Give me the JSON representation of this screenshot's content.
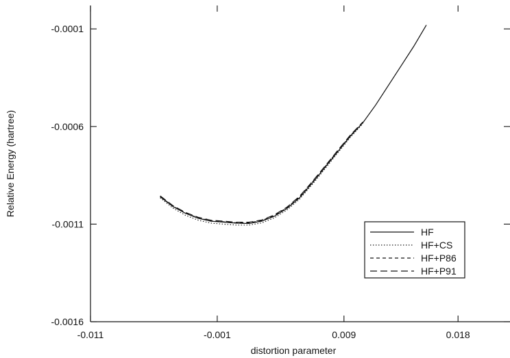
{
  "chart_data": {
    "type": "line",
    "title": "",
    "xlabel": "distortion parameter",
    "ylabel": "Relative Energy (hartree)",
    "xlim": [
      -0.011,
      0.0221
    ],
    "ylim": [
      -0.0016,
      2e-05
    ],
    "x_ticks": [
      -0.011,
      -0.001,
      0.009,
      0.018
    ],
    "x_tick_labels": [
      "-0.011",
      "-0.001",
      "0.009",
      "0.018"
    ],
    "y_ticks": [
      -0.0016,
      -0.0011,
      -0.0006,
      -0.0001
    ],
    "y_tick_labels": [
      "-0.0016",
      "-0.0011",
      "-0.0006",
      "-0.0001"
    ],
    "grid": false,
    "legend_position": "lower-right",
    "series": [
      {
        "name": "HF",
        "style": "solid",
        "x": [
          -0.0055,
          -0.0045,
          -0.0035,
          -0.0025,
          -0.0015,
          -0.0005,
          0.0005,
          0.0015,
          0.0025,
          0.0035,
          0.0045,
          0.0055,
          0.0065,
          0.0075,
          0.0085,
          0.0095,
          0.0105,
          0.0115,
          0.0125,
          0.0135,
          0.0145,
          0.0155
        ],
        "values": [
          -0.00096,
          -0.00101,
          -0.001045,
          -0.00107,
          -0.001085,
          -0.00109,
          -0.001095,
          -0.001097,
          -0.001085,
          -0.00106,
          -0.00102,
          -0.000965,
          -0.00089,
          -0.00081,
          -0.00073,
          -0.00065,
          -0.00058,
          -0.00049,
          -0.00039,
          -0.00029,
          -0.00019,
          -8e-05
        ]
      },
      {
        "name": "HF+CS",
        "style": "dotted",
        "x": [
          -0.0055,
          -0.0045,
          -0.0035,
          -0.0025,
          -0.0015,
          -0.0005,
          0.0005,
          0.0015,
          0.0025,
          0.0035,
          0.0045,
          0.0055,
          0.0065,
          0.0075,
          0.0085,
          0.0095,
          0.0105
        ],
        "values": [
          -0.000965,
          -0.001018,
          -0.001055,
          -0.00108,
          -0.001095,
          -0.0011,
          -0.001105,
          -0.001105,
          -0.001094,
          -0.001068,
          -0.001028,
          -0.000972,
          -0.000897,
          -0.000817,
          -0.000736,
          -0.000656,
          -0.000585
        ]
      },
      {
        "name": "HF+P86",
        "style": "dashed",
        "x": [
          -0.0055,
          -0.0045,
          -0.0035,
          -0.0025,
          -0.0015,
          -0.0005,
          0.0005,
          0.0015,
          0.0025,
          0.0035,
          0.0045,
          0.0055,
          0.0065,
          0.0075,
          0.0085,
          0.0095,
          0.0105
        ],
        "values": [
          -0.000958,
          -0.001008,
          -0.001043,
          -0.001068,
          -0.001083,
          -0.001088,
          -0.001093,
          -0.001093,
          -0.001082,
          -0.001056,
          -0.001016,
          -0.00096,
          -0.000885,
          -0.000806,
          -0.000726,
          -0.000647,
          -0.000578
        ]
      },
      {
        "name": "HF+P91",
        "style": "long-dashed",
        "x": [
          -0.0055,
          -0.0045,
          -0.0035,
          -0.0025,
          -0.0015,
          -0.0005,
          0.0005,
          0.0015,
          0.0025,
          0.0035,
          0.0045,
          0.0055,
          0.0065,
          0.0075,
          0.0085,
          0.0095,
          0.0105
        ],
        "values": [
          -0.000955,
          -0.001005,
          -0.00104,
          -0.001065,
          -0.00108,
          -0.001085,
          -0.00109,
          -0.00109,
          -0.001079,
          -0.001053,
          -0.001013,
          -0.000957,
          -0.000882,
          -0.000803,
          -0.000723,
          -0.000644,
          -0.000576
        ]
      }
    ]
  }
}
